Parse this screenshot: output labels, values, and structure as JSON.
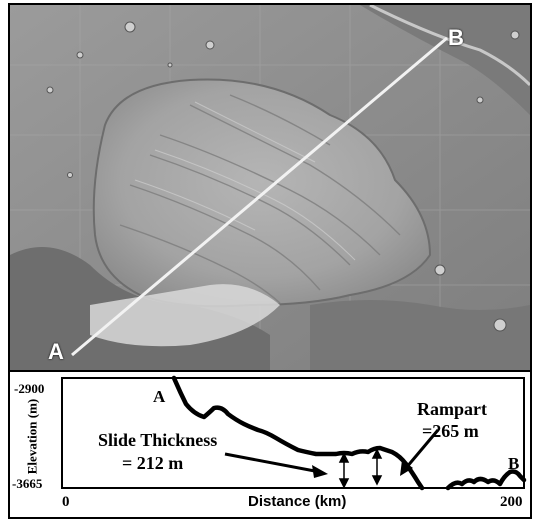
{
  "map": {
    "point_a": "A",
    "point_b": "B"
  },
  "profile": {
    "y_top": "-2900",
    "y_bottom": "-3665",
    "y_axis_label": "Elevation (m)",
    "x_axis_label": "Distance (km)",
    "x_min": "0",
    "x_max": "200",
    "label_a": "A",
    "label_b": "B",
    "rampart_title": "Rampart",
    "rampart_value": "=265 m",
    "slide_title": "Slide Thickness",
    "slide_value": "= 212 m"
  }
}
